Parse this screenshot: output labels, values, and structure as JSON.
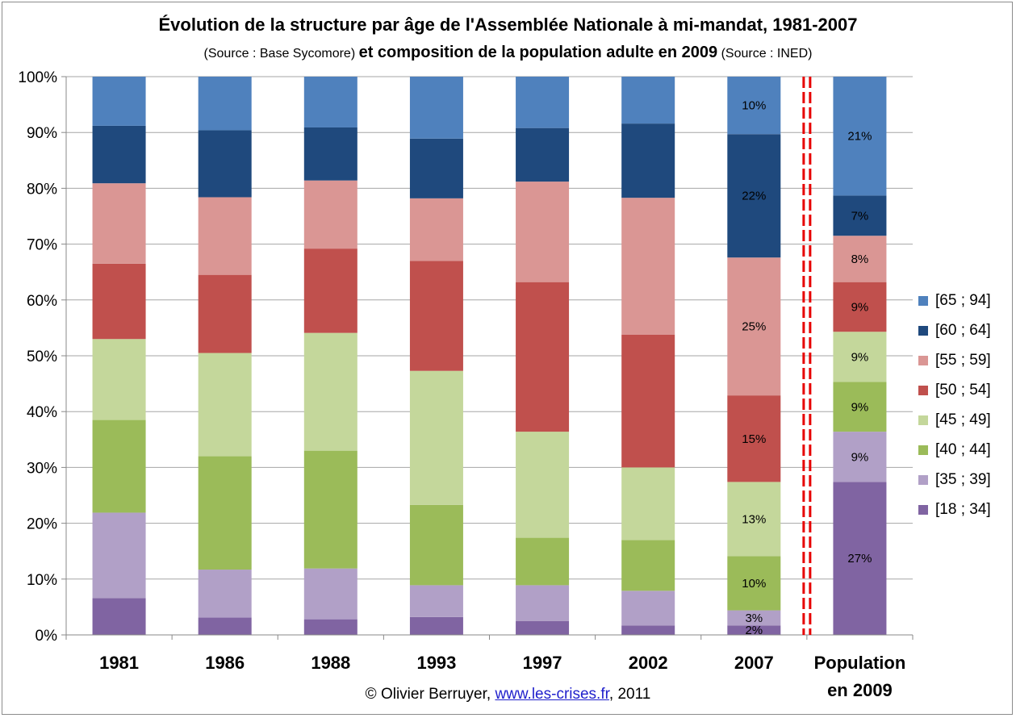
{
  "title": {
    "line1": "Évolution de la structure par âge de l'Assemblée Nationale à mi-mandat, 1981-2007",
    "line2_source1": "(Source : Base Sycomore)",
    "line2_main": "et composition de la population adulte en 2009",
    "line2_source2": "(Source : INED)"
  },
  "footer": {
    "copyright": "© Olivier Berruyer,",
    "link": "www.les-crises.fr",
    "year": ", 2011"
  },
  "chart_data": {
    "type": "bar",
    "stacked": true,
    "ylim": [
      0,
      100
    ],
    "yticks": [
      "0%",
      "10%",
      "20%",
      "30%",
      "40%",
      "50%",
      "60%",
      "70%",
      "80%",
      "90%",
      "100%"
    ],
    "categories": [
      "1981",
      "1986",
      "1988",
      "1993",
      "1997",
      "2002",
      "2007",
      "Population\nen 2009"
    ],
    "separator_after_category": 6,
    "grid": true,
    "legend_position": "right",
    "series": [
      {
        "name": "[18 ; 34]",
        "color": "#8064A2",
        "values": [
          6.6,
          3.1,
          2.8,
          3.2,
          2.5,
          1.7,
          1.7,
          27.4
        ]
      },
      {
        "name": "[35 ; 39]",
        "color": "#B1A0C7",
        "values": [
          15.3,
          8.6,
          9.1,
          5.7,
          6.4,
          6.2,
          2.7,
          9.0
        ]
      },
      {
        "name": "[40 ; 44]",
        "color": "#9BBB59",
        "values": [
          16.6,
          20.3,
          21.1,
          14.4,
          8.5,
          9.1,
          9.7,
          8.9
        ]
      },
      {
        "name": "[45 ; 49]",
        "color": "#C4D79B",
        "values": [
          14.5,
          18.5,
          21.1,
          24.0,
          19.0,
          13.0,
          13.3,
          9.0
        ]
      },
      {
        "name": "[50 ; 54]",
        "color": "#C0504D",
        "values": [
          13.5,
          14.0,
          15.1,
          19.7,
          26.8,
          23.8,
          15.5,
          8.9
        ]
      },
      {
        "name": "[55 ; 59]",
        "color": "#DA9694",
        "values": [
          14.4,
          13.9,
          12.2,
          11.2,
          18.0,
          24.5,
          24.7,
          8.3
        ]
      },
      {
        "name": "[60 ; 64]",
        "color": "#1F497D",
        "values": [
          10.3,
          12.0,
          9.5,
          10.7,
          9.6,
          13.3,
          22.1,
          7.2
        ]
      },
      {
        "name": "[65 ; 94]",
        "color": "#4F81BD",
        "values": [
          8.8,
          9.6,
          9.1,
          11.1,
          9.2,
          8.4,
          10.3,
          21.3
        ]
      }
    ],
    "data_labels": [
      {
        "category": 6,
        "series": 0,
        "text": "2%"
      },
      {
        "category": 6,
        "series": 1,
        "text": "3%"
      },
      {
        "category": 6,
        "series": 2,
        "text": "10%"
      },
      {
        "category": 6,
        "series": 3,
        "text": "13%"
      },
      {
        "category": 6,
        "series": 4,
        "text": "15%"
      },
      {
        "category": 6,
        "series": 5,
        "text": "25%"
      },
      {
        "category": 6,
        "series": 6,
        "text": "22%"
      },
      {
        "category": 6,
        "series": 7,
        "text": "10%"
      },
      {
        "category": 7,
        "series": 0,
        "text": "27%"
      },
      {
        "category": 7,
        "series": 1,
        "text": "9%"
      },
      {
        "category": 7,
        "series": 2,
        "text": "9%"
      },
      {
        "category": 7,
        "series": 3,
        "text": "9%"
      },
      {
        "category": 7,
        "series": 4,
        "text": "9%"
      },
      {
        "category": 7,
        "series": 5,
        "text": "8%"
      },
      {
        "category": 7,
        "series": 6,
        "text": "7%"
      },
      {
        "category": 7,
        "series": 7,
        "text": "21%"
      }
    ]
  }
}
